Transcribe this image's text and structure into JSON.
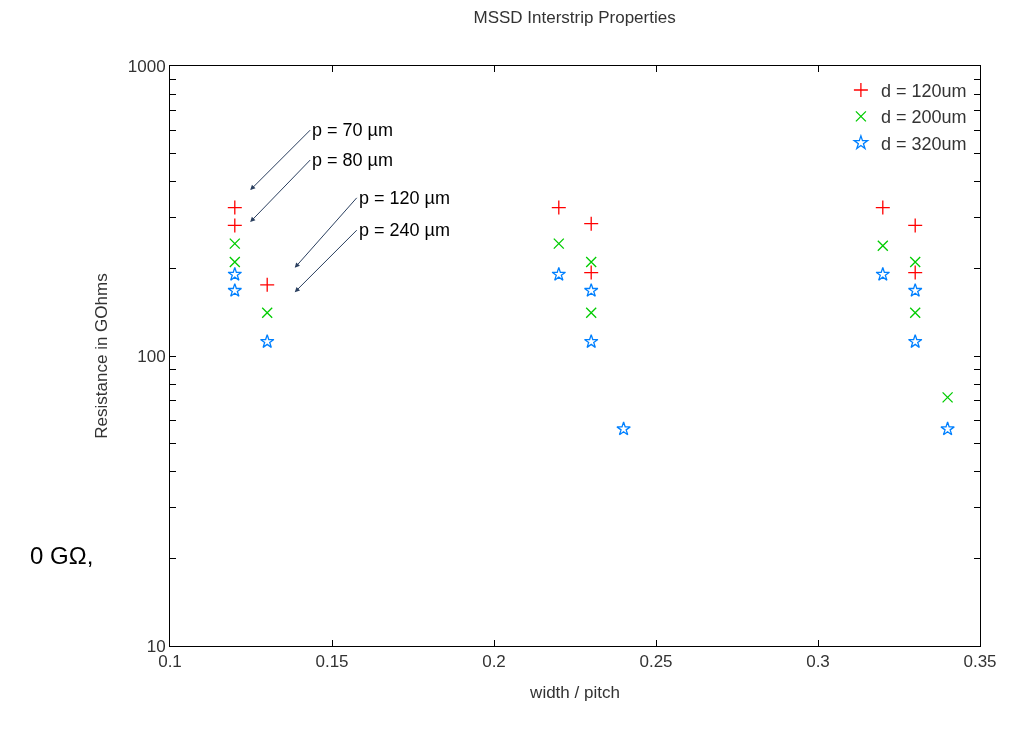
{
  "chart_data": {
    "type": "scatter",
    "title": "MSSD Interstrip Properties",
    "xlabel": "width / pitch",
    "ylabel": "Resistance in GOhms",
    "log": "y",
    "legend": "top right",
    "xlim": [
      0.1,
      0.35
    ],
    "xticks": [
      0.1,
      0.15,
      0.2,
      0.25,
      0.3,
      0.35
    ],
    "ylim": [
      10,
      1000
    ],
    "yticks": [
      10,
      {
        "value": 20,
        "label": null
      },
      {
        "value": 30,
        "label": null
      },
      {
        "value": 40,
        "label": null
      },
      {
        "value": 50,
        "label": null
      },
      {
        "value": 60,
        "label": null
      },
      {
        "value": 70,
        "label": null
      },
      {
        "value": 80,
        "label": null
      },
      {
        "value": 90,
        "label": null
      },
      100,
      {
        "value": 200,
        "label": null
      },
      {
        "value": 300,
        "label": null
      },
      {
        "value": 400,
        "label": null
      },
      {
        "value": 500,
        "label": null
      },
      {
        "value": 600,
        "label": null
      },
      {
        "value": 700,
        "label": null
      },
      {
        "value": 800,
        "label": null
      },
      {
        "value": 900,
        "label": null
      },
      1000
    ],
    "series": [
      {
        "name": "d = 120um",
        "color": "#ff0000",
        "marker": "cross",
        "x": [
          0.12,
          0.12,
          0.13,
          0.22,
          0.23,
          0.23,
          0.32,
          0.33,
          0.33
        ],
        "values": [
          325,
          282,
          176,
          325,
          286,
          194,
          325,
          282,
          194
        ]
      },
      {
        "name": "d = 200um",
        "color": "#00cc00",
        "marker": "x",
        "x": [
          0.12,
          0.12,
          0.13,
          0.22,
          0.23,
          0.23,
          0.32,
          0.33,
          0.33,
          0.34
        ],
        "values": [
          244,
          211,
          141,
          244,
          211,
          141,
          240,
          211,
          141,
          72
        ]
      },
      {
        "name": "d = 320um",
        "color": "#0080ff",
        "marker": "star",
        "x": [
          0.12,
          0.12,
          0.13,
          0.22,
          0.23,
          0.23,
          0.24,
          0.32,
          0.33,
          0.33,
          0.34
        ],
        "values": [
          191,
          168,
          112,
          191,
          168,
          112,
          56,
          191,
          168,
          112,
          56
        ]
      }
    ],
    "annotations": [
      "p = 70 µm",
      "p = 80 µm",
      "p = 120 µm",
      "p = 240 µm",
      "0 GΩ,"
    ]
  }
}
